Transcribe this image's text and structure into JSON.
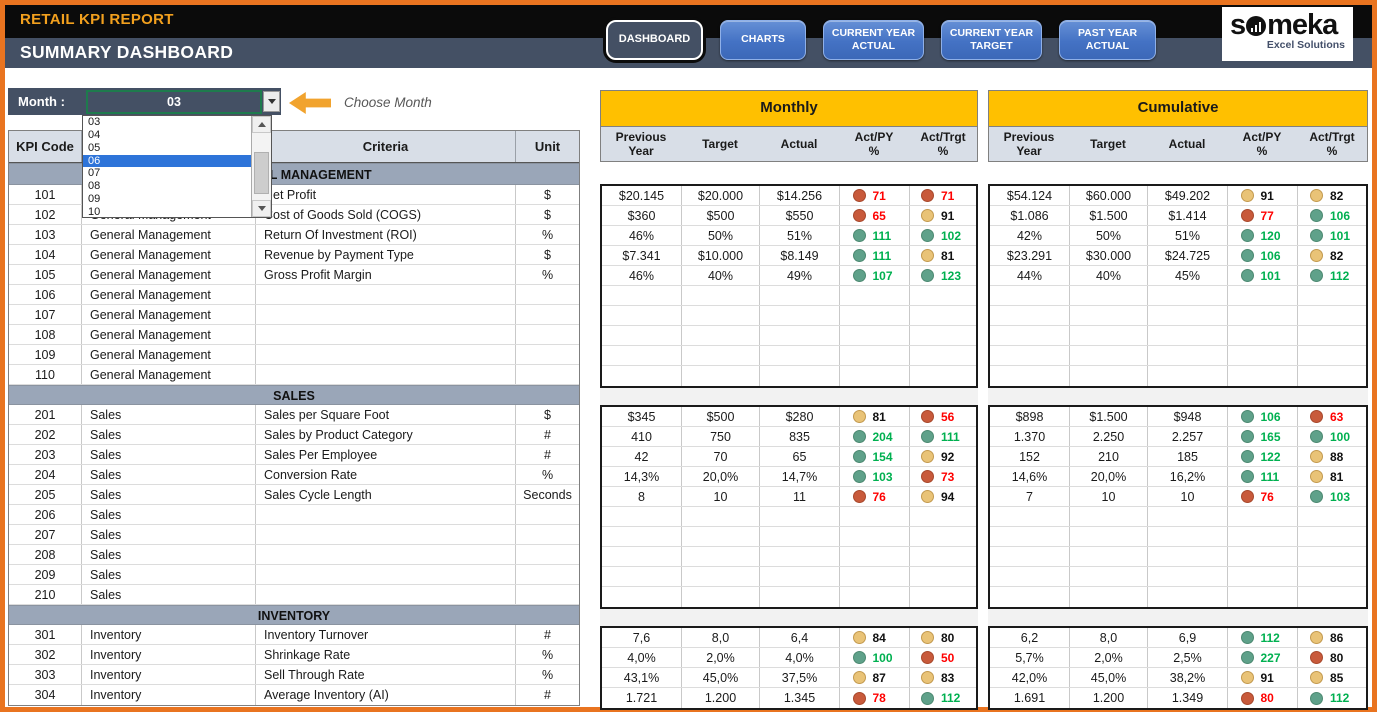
{
  "colors": {
    "frame_orange": "#E97420",
    "slate": "#445064",
    "gold_band": "#FFC000",
    "column_header_fill": "#D8DEE7",
    "section_band_fill": "#9AA6B8",
    "button_blue": "#4472C4",
    "selection_blue": "#2E74D9",
    "dot_green": "#5FA18A",
    "dot_yellow": "#E9C377",
    "dot_red": "#C85A3B",
    "text_green": "#00B050",
    "text_red": "#FF0000",
    "report_title_orange": "#F2A01E"
  },
  "icons": {
    "logo": "bar-chart-circle-icon",
    "month_dropdown": "chevron-down-icon",
    "scroll_up": "chevron-up-icon",
    "scroll_down": "chevron-down-icon",
    "choose_month": "left-block-arrow-icon"
  },
  "header": {
    "report_title": "RETAIL KPI REPORT",
    "page_title": "SUMMARY DASHBOARD",
    "buttons": [
      {
        "lines": [
          "DASHBOARD"
        ],
        "active": true
      },
      {
        "lines": [
          "CHARTS"
        ],
        "active": false
      },
      {
        "lines": [
          "CURRENT YEAR",
          "ACTUAL"
        ],
        "active": false
      },
      {
        "lines": [
          "CURRENT YEAR",
          "TARGET"
        ],
        "active": false
      },
      {
        "lines": [
          "PAST YEAR",
          "ACTUAL"
        ],
        "active": false
      }
    ],
    "logo": {
      "brand": "someka",
      "tagline": "Excel Solutions"
    }
  },
  "month_selector": {
    "label": "Month :",
    "value": "03",
    "options": [
      "03",
      "04",
      "05",
      "06",
      "07",
      "08",
      "09",
      "10"
    ],
    "highlighted": "06",
    "hint": "Choose Month"
  },
  "kpi_table": {
    "headers": {
      "code": "KPI Code",
      "dept": "",
      "criteria": "Criteria",
      "unit": "Unit"
    }
  },
  "value_tables": {
    "monthly_title": "Monthly",
    "cumulative_title": "Cumulative",
    "columns": [
      [
        "Previous",
        "Year"
      ],
      [
        "Target"
      ],
      [
        "Actual"
      ],
      [
        "Act/PY",
        "%"
      ],
      [
        "Act/Trgt",
        "%"
      ]
    ]
  },
  "sections": [
    {
      "name": "GENERAL MANAGEMENT",
      "rows": [
        {
          "code": "101",
          "dept": "General Management",
          "criteria": "Net Profit",
          "unit": "$",
          "m": {
            "py": "$20.145",
            "tg": "$20.000",
            "ac": "$14.256",
            "apy": {
              "v": "71",
              "s": "red"
            },
            "atg": {
              "v": "71",
              "s": "red"
            }
          },
          "c": {
            "py": "$54.124",
            "tg": "$60.000",
            "ac": "$49.202",
            "apy": {
              "v": "91",
              "s": "yellow"
            },
            "atg": {
              "v": "82",
              "s": "yellow"
            }
          }
        },
        {
          "code": "102",
          "dept": "General Management",
          "criteria": "Cost of Goods Sold (COGS)",
          "unit": "$",
          "m": {
            "py": "$360",
            "tg": "$500",
            "ac": "$550",
            "apy": {
              "v": "65",
              "s": "red"
            },
            "atg": {
              "v": "91",
              "s": "yellow"
            }
          },
          "c": {
            "py": "$1.086",
            "tg": "$1.500",
            "ac": "$1.414",
            "apy": {
              "v": "77",
              "s": "red"
            },
            "atg": {
              "v": "106",
              "s": "green"
            }
          }
        },
        {
          "code": "103",
          "dept": "General Management",
          "criteria": "Return Of Investment (ROI)",
          "unit": "%",
          "m": {
            "py": "46%",
            "tg": "50%",
            "ac": "51%",
            "apy": {
              "v": "111",
              "s": "green"
            },
            "atg": {
              "v": "102",
              "s": "green"
            }
          },
          "c": {
            "py": "42%",
            "tg": "50%",
            "ac": "51%",
            "apy": {
              "v": "120",
              "s": "green"
            },
            "atg": {
              "v": "101",
              "s": "green"
            }
          }
        },
        {
          "code": "104",
          "dept": "General Management",
          "criteria": "Revenue by Payment Type",
          "unit": "$",
          "m": {
            "py": "$7.341",
            "tg": "$10.000",
            "ac": "$8.149",
            "apy": {
              "v": "111",
              "s": "green"
            },
            "atg": {
              "v": "81",
              "s": "yellow"
            }
          },
          "c": {
            "py": "$23.291",
            "tg": "$30.000",
            "ac": "$24.725",
            "apy": {
              "v": "106",
              "s": "green"
            },
            "atg": {
              "v": "82",
              "s": "yellow"
            }
          }
        },
        {
          "code": "105",
          "dept": "General Management",
          "criteria": "Gross Profit Margin",
          "unit": "%",
          "m": {
            "py": "46%",
            "tg": "40%",
            "ac": "49%",
            "apy": {
              "v": "107",
              "s": "green"
            },
            "atg": {
              "v": "123",
              "s": "green"
            }
          },
          "c": {
            "py": "44%",
            "tg": "40%",
            "ac": "45%",
            "apy": {
              "v": "101",
              "s": "green"
            },
            "atg": {
              "v": "112",
              "s": "green"
            }
          }
        },
        {
          "code": "106",
          "dept": "General Management",
          "criteria": "",
          "unit": "",
          "m": null,
          "c": null
        },
        {
          "code": "107",
          "dept": "General Management",
          "criteria": "",
          "unit": "",
          "m": null,
          "c": null
        },
        {
          "code": "108",
          "dept": "General Management",
          "criteria": "",
          "unit": "",
          "m": null,
          "c": null
        },
        {
          "code": "109",
          "dept": "General Management",
          "criteria": "",
          "unit": "",
          "m": null,
          "c": null
        },
        {
          "code": "110",
          "dept": "General Management",
          "criteria": "",
          "unit": "",
          "m": null,
          "c": null
        }
      ]
    },
    {
      "name": "SALES",
      "rows": [
        {
          "code": "201",
          "dept": "Sales",
          "criteria": "Sales per Square Foot",
          "unit": "$",
          "m": {
            "py": "$345",
            "tg": "$500",
            "ac": "$280",
            "apy": {
              "v": "81",
              "s": "yellow"
            },
            "atg": {
              "v": "56",
              "s": "red"
            }
          },
          "c": {
            "py": "$898",
            "tg": "$1.500",
            "ac": "$948",
            "apy": {
              "v": "106",
              "s": "green"
            },
            "atg": {
              "v": "63",
              "s": "red"
            }
          }
        },
        {
          "code": "202",
          "dept": "Sales",
          "criteria": "Sales by Product Category",
          "unit": "#",
          "m": {
            "py": "410",
            "tg": "750",
            "ac": "835",
            "apy": {
              "v": "204",
              "s": "green"
            },
            "atg": {
              "v": "111",
              "s": "green"
            }
          },
          "c": {
            "py": "1.370",
            "tg": "2.250",
            "ac": "2.257",
            "apy": {
              "v": "165",
              "s": "green"
            },
            "atg": {
              "v": "100",
              "s": "green"
            }
          }
        },
        {
          "code": "203",
          "dept": "Sales",
          "criteria": "Sales Per Employee",
          "unit": "#",
          "m": {
            "py": "42",
            "tg": "70",
            "ac": "65",
            "apy": {
              "v": "154",
              "s": "green"
            },
            "atg": {
              "v": "92",
              "s": "yellow"
            }
          },
          "c": {
            "py": "152",
            "tg": "210",
            "ac": "185",
            "apy": {
              "v": "122",
              "s": "green"
            },
            "atg": {
              "v": "88",
              "s": "yellow"
            }
          }
        },
        {
          "code": "204",
          "dept": "Sales",
          "criteria": "Conversion Rate",
          "unit": "%",
          "m": {
            "py": "14,3%",
            "tg": "20,0%",
            "ac": "14,7%",
            "apy": {
              "v": "103",
              "s": "green"
            },
            "atg": {
              "v": "73",
              "s": "red"
            }
          },
          "c": {
            "py": "14,6%",
            "tg": "20,0%",
            "ac": "16,2%",
            "apy": {
              "v": "111",
              "s": "green"
            },
            "atg": {
              "v": "81",
              "s": "yellow"
            }
          }
        },
        {
          "code": "205",
          "dept": "Sales",
          "criteria": "Sales Cycle Length",
          "unit": "Seconds",
          "m": {
            "py": "8",
            "tg": "10",
            "ac": "11",
            "apy": {
              "v": "76",
              "s": "red"
            },
            "atg": {
              "v": "94",
              "s": "yellow"
            }
          },
          "c": {
            "py": "7",
            "tg": "10",
            "ac": "10",
            "apy": {
              "v": "76",
              "s": "red"
            },
            "atg": {
              "v": "103",
              "s": "green"
            }
          }
        },
        {
          "code": "206",
          "dept": "Sales",
          "criteria": "",
          "unit": "",
          "m": null,
          "c": null
        },
        {
          "code": "207",
          "dept": "Sales",
          "criteria": "",
          "unit": "",
          "m": null,
          "c": null
        },
        {
          "code": "208",
          "dept": "Sales",
          "criteria": "",
          "unit": "",
          "m": null,
          "c": null
        },
        {
          "code": "209",
          "dept": "Sales",
          "criteria": "",
          "unit": "",
          "m": null,
          "c": null
        },
        {
          "code": "210",
          "dept": "Sales",
          "criteria": "",
          "unit": "",
          "m": null,
          "c": null
        }
      ]
    },
    {
      "name": "INVENTORY",
      "rows": [
        {
          "code": "301",
          "dept": "Inventory",
          "criteria": "Inventory Turnover",
          "unit": "#",
          "m": {
            "py": "7,6",
            "tg": "8,0",
            "ac": "6,4",
            "apy": {
              "v": "84",
              "s": "yellow"
            },
            "atg": {
              "v": "80",
              "s": "yellow"
            }
          },
          "c": {
            "py": "6,2",
            "tg": "8,0",
            "ac": "6,9",
            "apy": {
              "v": "112",
              "s": "green"
            },
            "atg": {
              "v": "86",
              "s": "yellow"
            }
          }
        },
        {
          "code": "302",
          "dept": "Inventory",
          "criteria": "Shrinkage Rate",
          "unit": "%",
          "m": {
            "py": "4,0%",
            "tg": "2,0%",
            "ac": "4,0%",
            "apy": {
              "v": "100",
              "s": "green"
            },
            "atg": {
              "v": "50",
              "s": "red"
            }
          },
          "c": {
            "py": "5,7%",
            "tg": "2,0%",
            "ac": "2,5%",
            "apy": {
              "v": "227",
              "s": "green"
            },
            "atg": {
              "v": "80",
              "s": "red",
              "t": "black"
            }
          }
        },
        {
          "code": "303",
          "dept": "Inventory",
          "criteria": "Sell Through Rate",
          "unit": "%",
          "m": {
            "py": "43,1%",
            "tg": "45,0%",
            "ac": "37,5%",
            "apy": {
              "v": "87",
              "s": "yellow"
            },
            "atg": {
              "v": "83",
              "s": "yellow"
            }
          },
          "c": {
            "py": "42,0%",
            "tg": "45,0%",
            "ac": "38,2%",
            "apy": {
              "v": "91",
              "s": "yellow"
            },
            "atg": {
              "v": "85",
              "s": "yellow"
            }
          }
        },
        {
          "code": "304",
          "dept": "Inventory",
          "criteria": "Average Inventory (AI)",
          "unit": "#",
          "m": {
            "py": "1.721",
            "tg": "1.200",
            "ac": "1.345",
            "apy": {
              "v": "78",
              "s": "red"
            },
            "atg": {
              "v": "112",
              "s": "green"
            }
          },
          "c": {
            "py": "1.691",
            "tg": "1.200",
            "ac": "1.349",
            "apy": {
              "v": "80",
              "s": "red"
            },
            "atg": {
              "v": "112",
              "s": "green"
            }
          }
        }
      ]
    }
  ]
}
